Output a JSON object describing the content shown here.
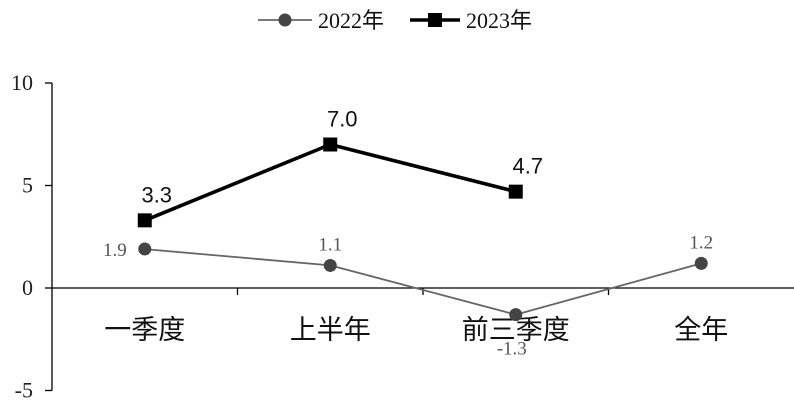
{
  "chart_data": {
    "type": "line",
    "title": "",
    "xlabel": "",
    "ylabel": "",
    "categories": [
      "一季度",
      "上半年",
      "前三季度",
      "全年"
    ],
    "ylim": [
      -5,
      10
    ],
    "yticks": [
      -5,
      0,
      5,
      10
    ],
    "series": [
      {
        "name": "2022年",
        "values": [
          1.9,
          1.1,
          -1.3,
          1.2
        ],
        "labels": [
          "1.9",
          "1.1",
          "-1.3",
          "1.2"
        ],
        "color": "#666666",
        "marker": "circle"
      },
      {
        "name": "2023年",
        "values": [
          3.3,
          7.0,
          4.7,
          null
        ],
        "labels": [
          "3.3",
          "7.0",
          "4.7",
          ""
        ],
        "color": "#000000",
        "marker": "square"
      }
    ],
    "legend": "top-center",
    "grid": false
  }
}
